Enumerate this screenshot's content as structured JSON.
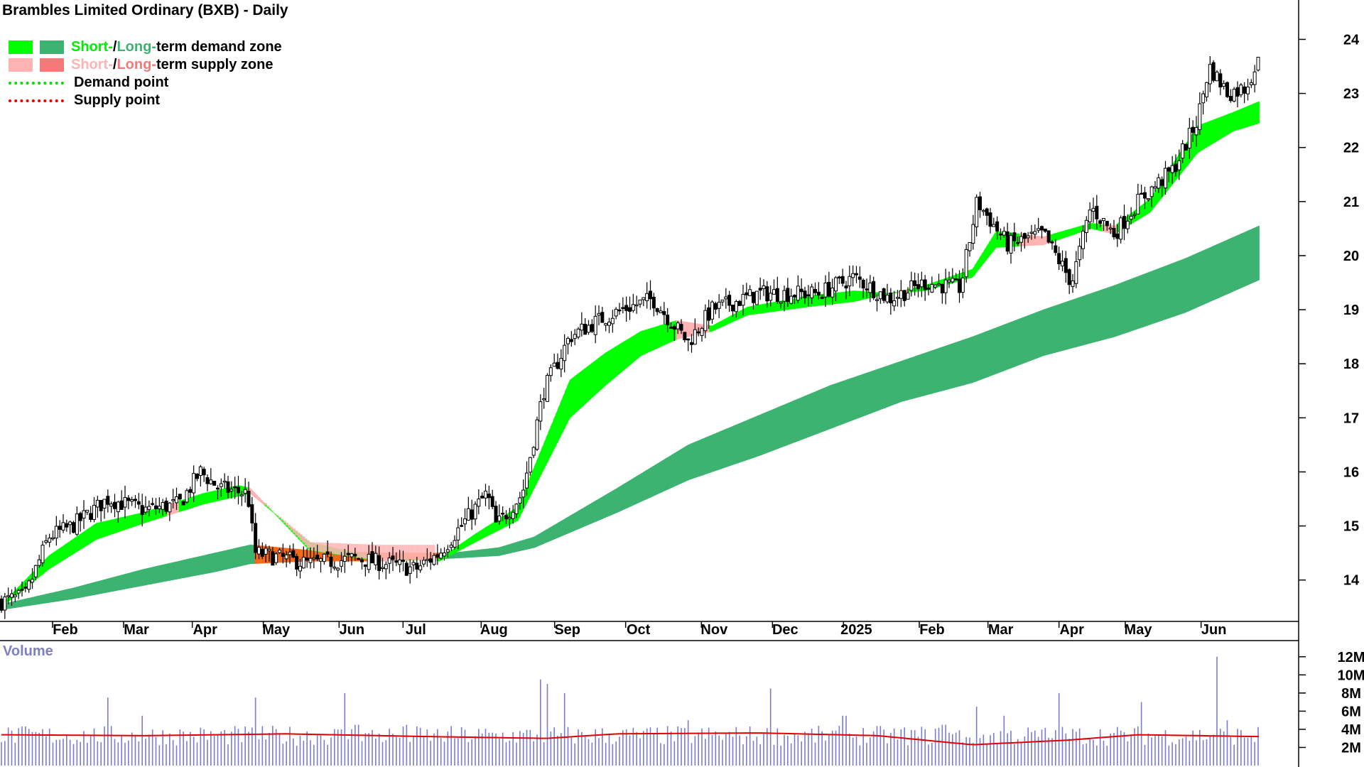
{
  "chart_data": {
    "type": "candlestick",
    "title": "Brambles Limited Ordinary (BXB) - Daily",
    "legend": [
      {
        "label_a": "Short-",
        "sep": " / ",
        "label_b": "Long-",
        "label_c": "term demand zone",
        "color_a": "#00ff00",
        "color_b": "#3cb371"
      },
      {
        "label_a": "Short-",
        "sep": " / ",
        "label_b": "Long-",
        "label_c": "term supply zone",
        "color_a": "#ffb3b3",
        "color_b": "#f47a7a"
      },
      {
        "label": "Demand point",
        "color": "#00dd00"
      },
      {
        "label": "Supply point",
        "color": "#ee0000"
      }
    ],
    "legend_colors": {
      "label_a_demand": "#00ff00",
      "label_b_demand": "#3cb371",
      "label_a_supply": "#ffb3b3",
      "label_b_supply": "#f47a7a"
    },
    "price_axis": {
      "ticks": [
        14,
        15,
        16,
        17,
        18,
        19,
        20,
        21,
        22,
        23,
        24
      ],
      "ylim": [
        13.3,
        24.4
      ]
    },
    "x_ticks": [
      "Feb",
      "Mar",
      "Apr",
      "May",
      "Jun",
      "Jul",
      "Aug",
      "Sep",
      "Oct",
      "Nov",
      "Dec",
      "2025",
      "Feb",
      "Mar",
      "Apr",
      "May",
      "Jun"
    ],
    "x_tick_days": [
      27,
      57,
      86,
      116,
      148,
      175,
      208,
      239,
      269,
      301,
      331,
      361,
      393,
      422,
      452,
      480,
      512
    ],
    "day_range": [
      0,
      531
    ],
    "close_anchors": [
      [
        0,
        13.6
      ],
      [
        10,
        13.7
      ],
      [
        20,
        14.8
      ],
      [
        30,
        15.0
      ],
      [
        45,
        15.5
      ],
      [
        60,
        15.3
      ],
      [
        75,
        15.4
      ],
      [
        84,
        16.0
      ],
      [
        92,
        15.7
      ],
      [
        104,
        15.6
      ],
      [
        107,
        14.5
      ],
      [
        130,
        14.3
      ],
      [
        150,
        14.4
      ],
      [
        175,
        14.2
      ],
      [
        185,
        14.5
      ],
      [
        205,
        15.6
      ],
      [
        209,
        15.0
      ],
      [
        220,
        15.6
      ],
      [
        229,
        17.5
      ],
      [
        240,
        18.5
      ],
      [
        252,
        18.8
      ],
      [
        262,
        19.0
      ],
      [
        275,
        19.2
      ],
      [
        290,
        18.4
      ],
      [
        300,
        19.0
      ],
      [
        320,
        19.3
      ],
      [
        345,
        19.3
      ],
      [
        360,
        19.6
      ],
      [
        375,
        19.2
      ],
      [
        390,
        19.5
      ],
      [
        405,
        19.4
      ],
      [
        412,
        21.0
      ],
      [
        425,
        20.2
      ],
      [
        440,
        20.4
      ],
      [
        452,
        19.5
      ],
      [
        460,
        20.9
      ],
      [
        470,
        20.4
      ],
      [
        480,
        21.0
      ],
      [
        495,
        21.6
      ],
      [
        505,
        22.5
      ],
      [
        510,
        23.5
      ],
      [
        518,
        23.0
      ],
      [
        525,
        23.1
      ],
      [
        531,
        23.6
      ]
    ],
    "short_zone_anchors": [
      [
        0,
        13.5,
        13.55
      ],
      [
        20,
        14.2,
        14.45
      ],
      [
        40,
        14.75,
        15.05
      ],
      [
        60,
        15.05,
        15.25
      ],
      [
        85,
        15.4,
        15.6
      ],
      [
        100,
        15.55,
        15.75
      ],
      [
        105,
        15.6,
        15.7
      ],
      [
        130,
        14.7,
        14.55
      ],
      [
        160,
        14.4,
        14.35
      ],
      [
        185,
        14.35,
        14.4
      ],
      [
        200,
        14.7,
        14.85
      ],
      [
        218,
        15.1,
        15.35
      ],
      [
        240,
        17.0,
        17.7
      ],
      [
        255,
        17.6,
        18.2
      ],
      [
        270,
        18.15,
        18.6
      ],
      [
        285,
        18.45,
        18.8
      ],
      [
        300,
        18.6,
        18.7
      ],
      [
        315,
        18.9,
        19.05
      ],
      [
        340,
        19.05,
        19.25
      ],
      [
        360,
        19.15,
        19.35
      ],
      [
        375,
        19.3,
        19.3
      ],
      [
        390,
        19.35,
        19.45
      ],
      [
        410,
        19.6,
        19.75
      ],
      [
        420,
        20.15,
        20.45
      ],
      [
        440,
        20.2,
        20.35
      ],
      [
        460,
        20.5,
        20.6
      ],
      [
        470,
        20.4,
        20.55
      ],
      [
        485,
        20.8,
        21.05
      ],
      [
        505,
        21.9,
        22.4
      ],
      [
        520,
        22.3,
        22.65
      ],
      [
        531,
        22.45,
        22.85
      ]
    ],
    "long_zone_anchors": [
      [
        0,
        13.45,
        13.55
      ],
      [
        30,
        13.65,
        13.85
      ],
      [
        60,
        13.9,
        14.2
      ],
      [
        90,
        14.15,
        14.5
      ],
      [
        105,
        14.3,
        14.65
      ],
      [
        130,
        14.35,
        14.55
      ],
      [
        160,
        14.35,
        14.5
      ],
      [
        190,
        14.4,
        14.5
      ],
      [
        210,
        14.45,
        14.6
      ],
      [
        225,
        14.6,
        14.8
      ],
      [
        260,
        15.25,
        15.7
      ],
      [
        290,
        15.85,
        16.5
      ],
      [
        320,
        16.3,
        17.05
      ],
      [
        350,
        16.8,
        17.6
      ],
      [
        380,
        17.3,
        18.05
      ],
      [
        410,
        17.65,
        18.5
      ],
      [
        440,
        18.15,
        19.0
      ],
      [
        470,
        18.5,
        19.45
      ],
      [
        500,
        18.95,
        19.95
      ],
      [
        531,
        19.55,
        20.55
      ]
    ],
    "short_supply_segments": [
      [
        70,
        74
      ],
      [
        104,
        110
      ],
      [
        155,
        165
      ],
      [
        176,
        183
      ],
      [
        285,
        298
      ],
      [
        378,
        382
      ],
      [
        430,
        442
      ],
      [
        465,
        470
      ]
    ],
    "long_supply_segments": [
      [
        107,
        184
      ]
    ],
    "volume": {
      "title": "Volume",
      "ticks": [
        {
          "v": 12,
          "label": "12M"
        },
        {
          "v": 10,
          "label": "10M"
        },
        {
          "v": 8,
          "label": "8M"
        },
        {
          "v": 6,
          "label": "6M"
        },
        {
          "v": 4,
          "label": "4M"
        },
        {
          "v": 2,
          "label": "2M"
        }
      ],
      "ylim": [
        0,
        13
      ],
      "spikes": [
        [
          45,
          7.5
        ],
        [
          60,
          5.5
        ],
        [
          107,
          7.5
        ],
        [
          145,
          8.0
        ],
        [
          150,
          4.5
        ],
        [
          171,
          4.5
        ],
        [
          228,
          9.5
        ],
        [
          230,
          9.0
        ],
        [
          238,
          8.0
        ],
        [
          290,
          5.0
        ],
        [
          325,
          8.5
        ],
        [
          356,
          5.5
        ],
        [
          398,
          4.5
        ],
        [
          412,
          6.5
        ],
        [
          424,
          5.5
        ],
        [
          447,
          8.0
        ],
        [
          482,
          7.0
        ],
        [
          513,
          12.0
        ],
        [
          518,
          5.0
        ]
      ],
      "average_anchors": [
        [
          0,
          3.4
        ],
        [
          60,
          3.3
        ],
        [
          120,
          3.5
        ],
        [
          180,
          3.2
        ],
        [
          230,
          3.0
        ],
        [
          260,
          3.5
        ],
        [
          320,
          3.6
        ],
        [
          370,
          3.3
        ],
        [
          410,
          2.3
        ],
        [
          450,
          2.8
        ],
        [
          480,
          3.4
        ],
        [
          531,
          3.2
        ]
      ]
    }
  }
}
